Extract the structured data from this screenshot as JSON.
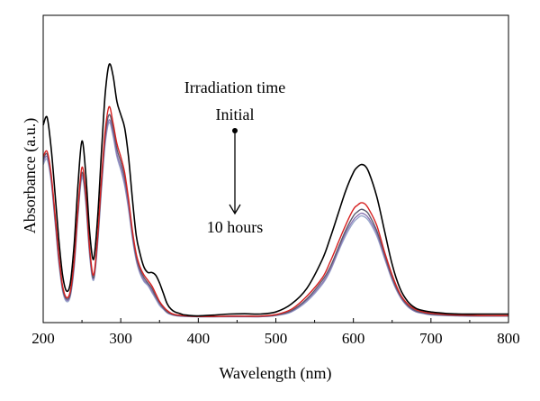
{
  "chart_data": {
    "type": "line",
    "xlabel": "Wavelength (nm)",
    "ylabel": "Absorbance (a.u.)",
    "xlim": [
      200,
      800
    ],
    "xticks": [
      200,
      300,
      400,
      500,
      600,
      700,
      800
    ],
    "ytick_labels": false,
    "grid": false,
    "legend": "none",
    "annotations": {
      "title": "Irradiation time",
      "start": "Initial",
      "end": "10 hours",
      "arrow": "down"
    },
    "x": [
      200,
      205,
      210,
      215,
      220,
      225,
      230,
      235,
      240,
      245,
      250,
      255,
      260,
      265,
      270,
      275,
      280,
      285,
      290,
      295,
      300,
      305,
      310,
      315,
      320,
      325,
      330,
      335,
      340,
      345,
      350,
      355,
      360,
      365,
      370,
      375,
      380,
      385,
      390,
      400,
      420,
      440,
      460,
      480,
      500,
      520,
      540,
      560,
      570,
      580,
      590,
      600,
      605,
      610,
      615,
      620,
      630,
      640,
      650,
      660,
      670,
      680,
      690,
      700,
      720,
      740,
      760,
      780,
      800
    ],
    "series": [
      {
        "color": "#000000",
        "values": [
          0.73,
          0.76,
          0.65,
          0.48,
          0.3,
          0.16,
          0.1,
          0.13,
          0.28,
          0.51,
          0.67,
          0.54,
          0.32,
          0.22,
          0.37,
          0.62,
          0.85,
          0.96,
          0.92,
          0.82,
          0.77,
          0.72,
          0.61,
          0.45,
          0.31,
          0.24,
          0.19,
          0.17,
          0.17,
          0.16,
          0.13,
          0.09,
          0.05,
          0.03,
          0.02,
          0.015,
          0.01,
          0.008,
          0.006,
          0.005,
          0.008,
          0.012,
          0.013,
          0.012,
          0.02,
          0.05,
          0.11,
          0.22,
          0.3,
          0.39,
          0.48,
          0.55,
          0.57,
          0.58,
          0.575,
          0.55,
          0.46,
          0.33,
          0.2,
          0.11,
          0.06,
          0.035,
          0.025,
          0.02,
          0.014,
          0.012,
          0.012,
          0.012,
          0.012
        ]
      },
      {
        "color": "#d62020",
        "values": [
          0.61,
          0.63,
          0.55,
          0.4,
          0.24,
          0.12,
          0.075,
          0.1,
          0.22,
          0.42,
          0.57,
          0.47,
          0.26,
          0.16,
          0.3,
          0.52,
          0.71,
          0.8,
          0.74,
          0.66,
          0.61,
          0.55,
          0.45,
          0.33,
          0.24,
          0.19,
          0.16,
          0.14,
          0.12,
          0.09,
          0.06,
          0.04,
          0.025,
          0.015,
          0.01,
          0.008,
          0.006,
          0.005,
          0.004,
          0.003,
          0.003,
          0.004,
          0.004,
          0.004,
          0.01,
          0.03,
          0.08,
          0.15,
          0.21,
          0.28,
          0.35,
          0.41,
          0.425,
          0.435,
          0.43,
          0.41,
          0.35,
          0.25,
          0.16,
          0.09,
          0.05,
          0.03,
          0.02,
          0.015,
          0.01,
          0.008,
          0.007,
          0.006,
          0.006
        ]
      },
      {
        "color": "#5a5a6e",
        "values": [
          0.6,
          0.62,
          0.54,
          0.39,
          0.23,
          0.11,
          0.07,
          0.09,
          0.21,
          0.41,
          0.55,
          0.45,
          0.25,
          0.15,
          0.29,
          0.5,
          0.69,
          0.77,
          0.72,
          0.64,
          0.59,
          0.53,
          0.44,
          0.32,
          0.23,
          0.18,
          0.15,
          0.13,
          0.11,
          0.08,
          0.055,
          0.035,
          0.02,
          0.012,
          0.008,
          0.006,
          0.005,
          0.004,
          0.003,
          0.002,
          0.002,
          0.003,
          0.003,
          0.003,
          0.008,
          0.025,
          0.07,
          0.14,
          0.19,
          0.26,
          0.33,
          0.385,
          0.4,
          0.41,
          0.405,
          0.39,
          0.33,
          0.24,
          0.15,
          0.085,
          0.045,
          0.025,
          0.017,
          0.012,
          0.008,
          0.006,
          0.005,
          0.005,
          0.005
        ]
      },
      {
        "color": "#8a78b4",
        "values": [
          0.59,
          0.61,
          0.53,
          0.38,
          0.22,
          0.11,
          0.065,
          0.085,
          0.2,
          0.4,
          0.54,
          0.44,
          0.24,
          0.145,
          0.28,
          0.49,
          0.67,
          0.75,
          0.7,
          0.62,
          0.57,
          0.51,
          0.42,
          0.31,
          0.22,
          0.17,
          0.14,
          0.125,
          0.1,
          0.075,
          0.05,
          0.032,
          0.018,
          0.011,
          0.007,
          0.005,
          0.004,
          0.003,
          0.003,
          0.002,
          0.002,
          0.002,
          0.002,
          0.002,
          0.007,
          0.022,
          0.065,
          0.13,
          0.18,
          0.25,
          0.32,
          0.37,
          0.385,
          0.395,
          0.39,
          0.375,
          0.32,
          0.23,
          0.145,
          0.08,
          0.042,
          0.022,
          0.015,
          0.01,
          0.007,
          0.005,
          0.004,
          0.004,
          0.004
        ]
      },
      {
        "color": "#9aa8cc",
        "values": [
          0.58,
          0.6,
          0.52,
          0.37,
          0.21,
          0.1,
          0.06,
          0.08,
          0.19,
          0.39,
          0.53,
          0.43,
          0.23,
          0.14,
          0.27,
          0.48,
          0.66,
          0.74,
          0.69,
          0.61,
          0.56,
          0.5,
          0.41,
          0.3,
          0.215,
          0.165,
          0.135,
          0.12,
          0.095,
          0.07,
          0.045,
          0.03,
          0.016,
          0.01,
          0.006,
          0.004,
          0.003,
          0.003,
          0.002,
          0.002,
          0.002,
          0.002,
          0.002,
          0.002,
          0.006,
          0.02,
          0.06,
          0.125,
          0.175,
          0.245,
          0.31,
          0.36,
          0.375,
          0.385,
          0.38,
          0.365,
          0.31,
          0.225,
          0.14,
          0.078,
          0.04,
          0.021,
          0.014,
          0.009,
          0.006,
          0.005,
          0.004,
          0.004,
          0.004
        ]
      }
    ]
  }
}
